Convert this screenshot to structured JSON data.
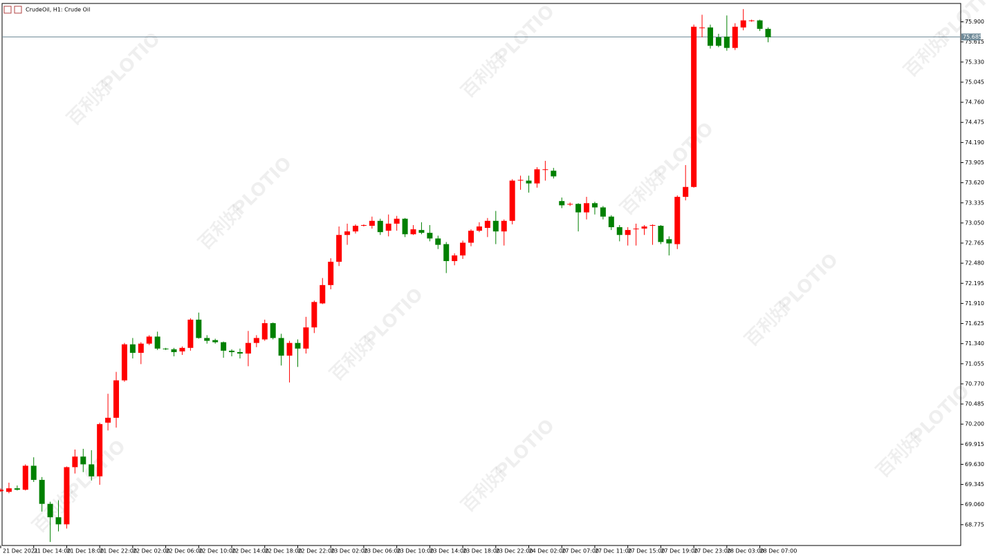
{
  "chart_data": {
    "type": "candlestick",
    "title": "CrudeOil, H1:  Crude Oil",
    "watermark": [
      "百利好",
      "PLOTIO"
    ],
    "categories": [
      "21 Dec 2021",
      null,
      null,
      null,
      "21 Dec 14:00",
      null,
      null,
      null,
      "21 Dec 18:00",
      null,
      null,
      null,
      "21 Dec 22:00",
      null,
      null,
      null,
      "22 Dec 02:00",
      null,
      null,
      null,
      "22 Dec 06:00",
      null,
      null,
      null,
      "22 Dec 10:00",
      null,
      null,
      null,
      "22 Dec 14:00",
      null,
      null,
      null,
      "22 Dec 18:00",
      null,
      null,
      null,
      "22 Dec 22:00",
      null,
      null,
      null,
      "23 Dec 02:00",
      null,
      null,
      null,
      "23 Dec 06:00",
      null,
      null,
      null,
      "23 Dec 10:00",
      null,
      null,
      null,
      "23 Dec 14:00",
      null,
      null,
      null,
      "23 Dec 18:00",
      null,
      null,
      null,
      "23 Dec 22:00",
      null,
      null,
      null,
      "24 Dec 02:00",
      null,
      null,
      null,
      "27 Dec 07:00",
      null,
      null,
      null,
      "27 Dec 11:00",
      null,
      null,
      null,
      "27 Dec 15:00",
      null,
      null,
      null,
      "27 Dec 19:00",
      null,
      null,
      null,
      "27 Dec 23:00",
      null,
      null,
      null,
      "28 Dec 03:00",
      null,
      null,
      null,
      "28 Dec 07:00",
      null
    ],
    "open": [
      69.25,
      69.24,
      69.29,
      69.27,
      69.61,
      69.41,
      69.07,
      68.88,
      68.78,
      69.59,
      69.74,
      69.63,
      69.46,
      70.22,
      70.29,
      70.82,
      71.33,
      71.21,
      71.34,
      71.44,
      71.27,
      71.26,
      71.23,
      71.28,
      71.68,
      71.42,
      71.39,
      71.36,
      71.24,
      71.22,
      71.2,
      71.35,
      71.4,
      71.63,
      71.42,
      71.17,
      71.35,
      71.27,
      71.57,
      71.91,
      72.17,
      72.5,
      72.88,
      72.93,
      73.01,
      73.01,
      73.08,
      72.94,
      73.04,
      73.11,
      72.89,
      72.95,
      72.91,
      72.83,
      72.75,
      72.51,
      72.59,
      72.77,
      72.94,
      72.98,
      73.08,
      72.93,
      73.08,
      73.65,
      73.65,
      73.61,
      73.8,
      73.79,
      73.36,
      73.31,
      73.32,
      73.2,
      73.33,
      73.27,
      73.14,
      72.99,
      72.88,
      72.96,
      72.97,
      73.01,
      73.01,
      72.82,
      72.75,
      73.42,
      73.56,
      75.81,
      75.82,
      75.68,
      75.69,
      75.53,
      75.82,
      75.91,
      75.92,
      75.8
    ],
    "high": [
      69.29,
      69.37,
      69.33,
      69.63,
      69.73,
      69.45,
      69.1,
      69.12,
      69.6,
      69.84,
      69.85,
      69.83,
      70.22,
      70.63,
      70.94,
      71.35,
      71.42,
      71.36,
      71.46,
      71.51,
      71.28,
      71.28,
      71.3,
      71.7,
      71.78,
      71.46,
      71.41,
      71.37,
      71.26,
      71.27,
      71.52,
      71.46,
      71.68,
      71.64,
      71.48,
      71.38,
      71.4,
      71.72,
      71.95,
      72.27,
      72.55,
      73.0,
      73.04,
      73.03,
      73.03,
      73.14,
      73.11,
      73.17,
      73.15,
      73.12,
      73.02,
      73.06,
      73.02,
      72.87,
      72.78,
      72.62,
      72.8,
      72.96,
      73.06,
      73.12,
      73.22,
      73.1,
      73.67,
      73.72,
      73.72,
      73.84,
      73.93,
      73.83,
      73.41,
      73.34,
      73.33,
      73.42,
      73.35,
      73.29,
      73.16,
      73.02,
      72.99,
      73.04,
      73.02,
      73.03,
      73.02,
      72.86,
      73.44,
      73.87,
      75.86,
      76.0,
      75.86,
      75.73,
      75.99,
      75.88,
      76.08,
      75.93,
      75.93,
      75.82
    ],
    "low": [
      69.24,
      69.22,
      69.26,
      69.26,
      69.38,
      68.96,
      68.53,
      68.68,
      68.72,
      69.5,
      69.52,
      69.4,
      69.34,
      70.11,
      70.15,
      70.8,
      71.13,
      71.05,
      71.32,
      71.25,
      71.25,
      71.16,
      71.18,
      71.24,
      71.41,
      71.34,
      71.34,
      71.14,
      71.16,
      71.13,
      71.02,
      71.29,
      71.38,
      71.4,
      71.03,
      70.79,
      71.01,
      71.2,
      71.49,
      71.9,
      72.11,
      72.44,
      72.74,
      72.9,
      73.0,
      72.97,
      72.88,
      72.86,
      72.94,
      72.85,
      72.88,
      72.89,
      72.79,
      72.68,
      72.34,
      72.45,
      72.54,
      72.72,
      72.92,
      72.85,
      72.75,
      72.73,
      73.03,
      73.52,
      73.48,
      73.55,
      73.65,
      73.68,
      73.26,
      73.29,
      72.93,
      73.1,
      73.17,
      73.1,
      72.95,
      72.79,
      72.73,
      72.73,
      72.88,
      72.74,
      72.75,
      72.59,
      72.68,
      73.37,
      73.55,
      75.68,
      75.52,
      75.54,
      75.49,
      75.5,
      75.78,
      75.9,
      75.77,
      75.61
    ],
    "close": [
      69.27,
      69.29,
      69.27,
      69.61,
      69.41,
      69.07,
      68.88,
      68.78,
      69.59,
      69.74,
      69.63,
      69.46,
      70.2,
      70.29,
      70.82,
      71.33,
      71.21,
      71.34,
      71.44,
      71.27,
      71.26,
      71.22,
      71.28,
      71.68,
      71.42,
      71.38,
      71.36,
      71.24,
      71.22,
      71.2,
      71.35,
      71.42,
      71.63,
      71.42,
      71.17,
      71.35,
      71.27,
      71.57,
      71.93,
      72.17,
      72.5,
      72.88,
      72.93,
      73.01,
      73.02,
      73.08,
      72.92,
      73.04,
      73.11,
      72.89,
      72.96,
      72.91,
      72.83,
      72.74,
      72.51,
      72.59,
      72.77,
      72.94,
      73.0,
      73.08,
      72.93,
      73.08,
      73.65,
      73.66,
      73.61,
      73.81,
      73.81,
      73.71,
      73.3,
      73.32,
      73.2,
      73.33,
      73.27,
      73.14,
      72.99,
      72.88,
      72.95,
      72.97,
      73.0,
      73.02,
      72.78,
      72.76,
      73.42,
      73.56,
      75.83,
      75.82,
      75.56,
      75.56,
      75.53,
      75.83,
      75.92,
      75.92,
      75.8,
      75.68
    ],
    "up_color": "#ff0000",
    "down_color": "#008000",
    "current_price": 75.685,
    "ylim": [
      68.48,
      76.16
    ],
    "yticks": [
      68.775,
      {
        "value": 69.06,
        "label": "69.060"
      },
      69.345,
      {
        "value": 69.63,
        "label": "69.630"
      },
      69.915,
      {
        "value": 70.2,
        "label": "70.200"
      },
      70.485,
      {
        "value": 70.77,
        "label": "70.770"
      },
      71.055,
      {
        "value": 71.34,
        "label": "71.340"
      },
      71.625,
      {
        "value": 71.91,
        "label": "71.910"
      },
      72.195,
      {
        "value": 72.48,
        "label": "72.480"
      },
      72.765,
      {
        "value": 73.05,
        "label": "73.050"
      },
      73.335,
      {
        "value": 73.62,
        "label": "73.620"
      },
      73.905,
      {
        "value": 74.19,
        "label": "74.190"
      },
      74.475,
      {
        "value": 74.76,
        "label": "74.760"
      },
      75.045,
      {
        "value": 75.33,
        "label": "75.330"
      },
      75.615,
      {
        "value": 75.9,
        "label": "75.900"
      }
    ]
  }
}
